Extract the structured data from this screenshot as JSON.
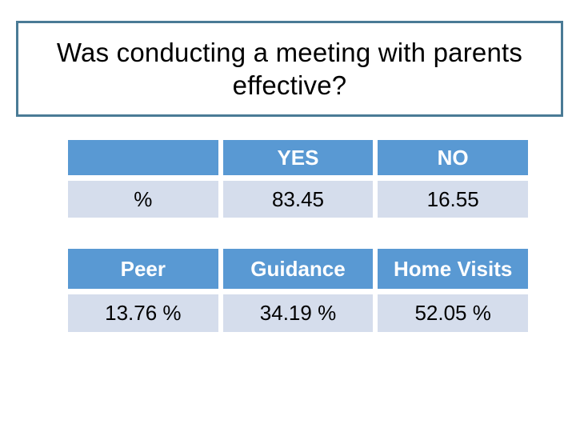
{
  "title": {
    "line1": "Was conducting a meeting with parents",
    "line2": "effective?"
  },
  "tables": {
    "yes_no": {
      "corner": "",
      "headers": {
        "yes": "YES",
        "no": "NO"
      },
      "row": {
        "label": "%",
        "yes_value": "83.45",
        "no_value": "16.55"
      }
    },
    "methods": {
      "headers": {
        "peer": "Peer",
        "guidance": "Guidance",
        "home_visits": "Home Visits"
      },
      "row": {
        "peer_value": "13.76 %",
        "guidance_value": "34.19 %",
        "home_visits_value": "52.05 %"
      }
    }
  },
  "colors": {
    "background": "#ffffff",
    "title_border": "#4A7B96",
    "title_text": "#000000",
    "header_bg": "#5999D3",
    "header_text": "#ffffff",
    "row_bg": "#D5DDEC",
    "row_text": "#000000"
  },
  "chart_data": [
    {
      "type": "table",
      "title": "Was conducting a meeting with parents effective?",
      "columns": [
        "",
        "YES",
        "NO"
      ],
      "rows": [
        [
          "%",
          83.45,
          16.55
        ]
      ]
    },
    {
      "type": "table",
      "columns": [
        "Peer",
        "Guidance",
        "Home Visits"
      ],
      "rows": [
        [
          "13.76 %",
          "34.19 %",
          "52.05 %"
        ]
      ]
    }
  ]
}
